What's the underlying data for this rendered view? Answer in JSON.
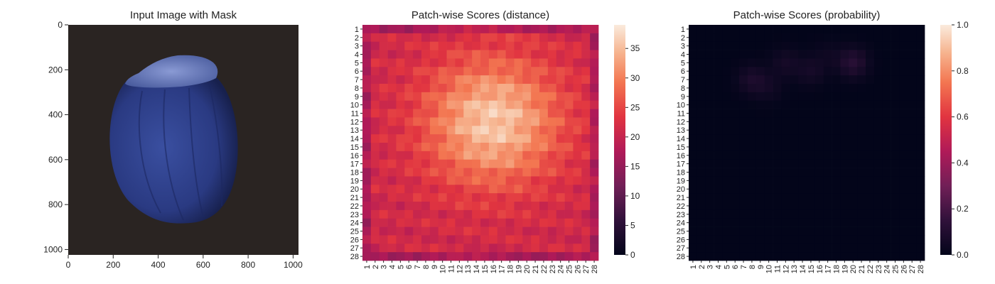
{
  "chart_data": [
    {
      "type": "image",
      "title": "Input Image with Mask",
      "x_ticks": [
        "0",
        "200",
        "400",
        "600",
        "800",
        "1000"
      ],
      "y_ticks": [
        "0",
        "200",
        "400",
        "600",
        "800",
        "1000"
      ],
      "xlim": [
        0,
        1024
      ],
      "ylim": [
        1024,
        0
      ],
      "colors": {
        "background": "#2a2422",
        "shell": "#2d3f86",
        "shell_dark": "#1b2657",
        "cap": "#6f82c2"
      }
    },
    {
      "type": "heatmap",
      "title": "Patch-wise Scores (distance)",
      "rows": 28,
      "cols": 28,
      "tick_labels": [
        "1",
        "2",
        "3",
        "4",
        "5",
        "6",
        "7",
        "8",
        "9",
        "10",
        "11",
        "12",
        "13",
        "14",
        "15",
        "16",
        "17",
        "18",
        "19",
        "20",
        "21",
        "22",
        "23",
        "24",
        "25",
        "26",
        "27",
        "28"
      ],
      "colorbar": {
        "range": [
          0,
          39
        ],
        "ticks": [
          "0",
          "5",
          "10",
          "15",
          "20",
          "25",
          "30",
          "35"
        ]
      },
      "estimated_pattern": {
        "edge_value": 21,
        "center_value": 36,
        "center_row": 11,
        "center_col": 15,
        "max_value": 39
      }
    },
    {
      "type": "heatmap",
      "title": "Patch-wise Scores (probability)",
      "rows": 28,
      "cols": 28,
      "tick_labels": [
        "1",
        "2",
        "3",
        "4",
        "5",
        "6",
        "7",
        "8",
        "9",
        "10",
        "11",
        "12",
        "13",
        "14",
        "15",
        "16",
        "17",
        "18",
        "19",
        "20",
        "21",
        "22",
        "23",
        "24",
        "25",
        "26",
        "27",
        "28"
      ],
      "colorbar": {
        "range": [
          0,
          1
        ],
        "ticks": [
          "0.0",
          "0.2",
          "0.4",
          "0.6",
          "0.8",
          "1.0"
        ]
      },
      "estimated_pattern": {
        "background_value": 0.0,
        "peak_value": 0.12,
        "peak_row": 5,
        "peak_col": 20
      }
    }
  ]
}
